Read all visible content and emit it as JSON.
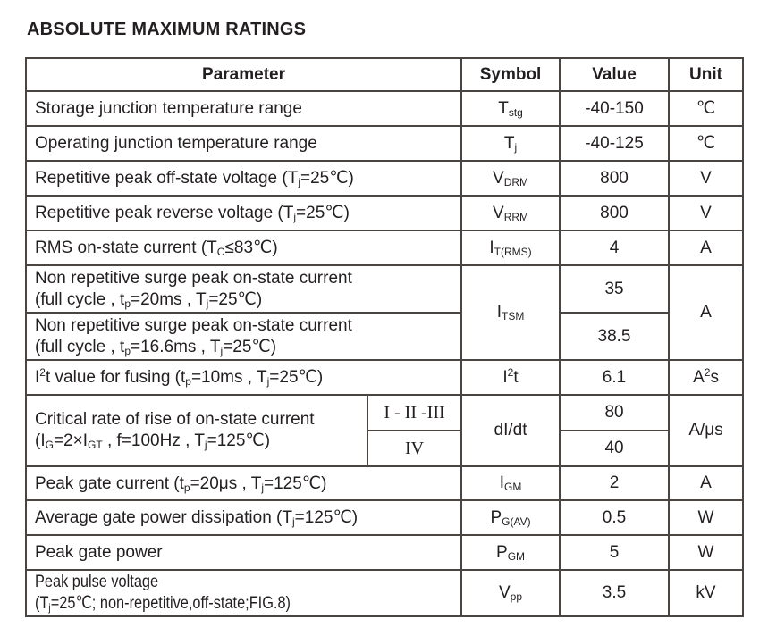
{
  "page_title": "ABSOLUTE MAXIMUM RATINGS",
  "table": {
    "headers": {
      "param": "Parameter",
      "symbol": "Symbol",
      "value": "Value",
      "unit": "Unit"
    },
    "rows": [
      {
        "param": [
          {
            "t": "Storage junction temperature range"
          }
        ],
        "symbol": [
          {
            "t": "T"
          },
          {
            "t": "stg",
            "m": "sub"
          }
        ],
        "value": "-40-150",
        "unit": "℃"
      },
      {
        "param": [
          {
            "t": "Operating junction temperature range"
          }
        ],
        "symbol": [
          {
            "t": "T"
          },
          {
            "t": "j",
            "m": "sub"
          }
        ],
        "value": "-40-125",
        "unit": "℃"
      },
      {
        "param": [
          {
            "t": "Repetitive peak off-state voltage (T"
          },
          {
            "t": "j",
            "m": "sub"
          },
          {
            "t": "=25℃)"
          }
        ],
        "symbol": [
          {
            "t": "V"
          },
          {
            "t": "DRM",
            "m": "sub"
          }
        ],
        "value": "800",
        "unit": "V"
      },
      {
        "param": [
          {
            "t": "Repetitive peak reverse voltage (T"
          },
          {
            "t": "j",
            "m": "sub"
          },
          {
            "t": "=25℃)"
          }
        ],
        "symbol": [
          {
            "t": "V"
          },
          {
            "t": "RRM",
            "m": "sub"
          }
        ],
        "value": "800",
        "unit": "V"
      },
      {
        "param": [
          {
            "t": "RMS on-state current (T"
          },
          {
            "t": "C",
            "m": "sub"
          },
          {
            "t": "≤83℃)"
          }
        ],
        "symbol": [
          {
            "t": "I"
          },
          {
            "t": "T(RMS)",
            "m": "sub"
          }
        ],
        "value": "4",
        "unit": "A"
      },
      {
        "param_line1": [
          {
            "t": "Non repetitive surge peak on-state current"
          }
        ],
        "param_line2": [
          {
            "t": "(full cycle , t"
          },
          {
            "t": "p",
            "m": "sub"
          },
          {
            "t": "=20ms , T"
          },
          {
            "t": "j",
            "m": "sub"
          },
          {
            "t": "=25℃)"
          }
        ],
        "symbol": [
          {
            "t": "I"
          },
          {
            "t": "TSM",
            "m": "sub"
          }
        ],
        "value": "35",
        "unit": "A"
      },
      {
        "param_line1": [
          {
            "t": "Non repetitive surge peak on-state current"
          }
        ],
        "param_line2": [
          {
            "t": "(full cycle , t"
          },
          {
            "t": "p",
            "m": "sub"
          },
          {
            "t": "=16.6ms , T"
          },
          {
            "t": "j",
            "m": "sub"
          },
          {
            "t": "=25℃)"
          }
        ],
        "value": "38.5"
      },
      {
        "param": [
          {
            "t": "I"
          },
          {
            "t": "2",
            "m": "sup"
          },
          {
            "t": "t value for fusing (t"
          },
          {
            "t": "p",
            "m": "sub"
          },
          {
            "t": "=10ms , T"
          },
          {
            "t": "j",
            "m": "sub"
          },
          {
            "t": "=25℃)"
          }
        ],
        "symbol": [
          {
            "t": "I"
          },
          {
            "t": "2",
            "m": "sup"
          },
          {
            "t": "t"
          }
        ],
        "value": "6.1",
        "unit": [
          {
            "t": "A"
          },
          {
            "t": "2",
            "m": "sup"
          },
          {
            "t": "s"
          }
        ]
      },
      {
        "param_line1": [
          {
            "t": "Critical rate of rise of on-state current"
          }
        ],
        "param_line2": [
          {
            "t": "(I"
          },
          {
            "t": "G",
            "m": "sub"
          },
          {
            "t": "=2"
          },
          {
            "t": "×"
          },
          {
            "t": "I"
          },
          {
            "t": "GT",
            "m": "sub"
          },
          {
            "t": " , f=100Hz , T"
          },
          {
            "t": "j",
            "m": "sub"
          },
          {
            "t": "=125℃)"
          }
        ],
        "class_label": "I - II -III",
        "symbol": [
          {
            "t": "dI/dt"
          }
        ],
        "value": "80",
        "unit": "A/μs"
      },
      {
        "class_label": "IV",
        "value": "40"
      },
      {
        "param": [
          {
            "t": "Peak gate current (t"
          },
          {
            "t": "p",
            "m": "sub"
          },
          {
            "t": "=20μs , T"
          },
          {
            "t": "j",
            "m": "sub"
          },
          {
            "t": "=125℃)"
          }
        ],
        "symbol": [
          {
            "t": "I"
          },
          {
            "t": "GM",
            "m": "sub"
          }
        ],
        "value": "2",
        "unit": "A"
      },
      {
        "param": [
          {
            "t": "Average gate power dissipation (T"
          },
          {
            "t": "j",
            "m": "sub"
          },
          {
            "t": "=125℃)"
          }
        ],
        "symbol": [
          {
            "t": "P"
          },
          {
            "t": "G(AV)",
            "m": "sub"
          }
        ],
        "value": "0.5",
        "unit": "W"
      },
      {
        "param": [
          {
            "t": "Peak gate power"
          }
        ],
        "symbol": [
          {
            "t": "P"
          },
          {
            "t": "GM",
            "m": "sub"
          }
        ],
        "value": "5",
        "unit": "W"
      },
      {
        "param_line1": [
          {
            "t": "Peak pulse voltage"
          }
        ],
        "param_line2": [
          {
            "t": "(T"
          },
          {
            "t": "j",
            "m": "sub"
          },
          {
            "t": "=25℃; non-repetitive,off-state;FIG.8)"
          }
        ],
        "symbol": [
          {
            "t": "V"
          },
          {
            "t": "pp",
            "m": "sub"
          }
        ],
        "value": "3.5",
        "unit": "kV"
      }
    ]
  }
}
